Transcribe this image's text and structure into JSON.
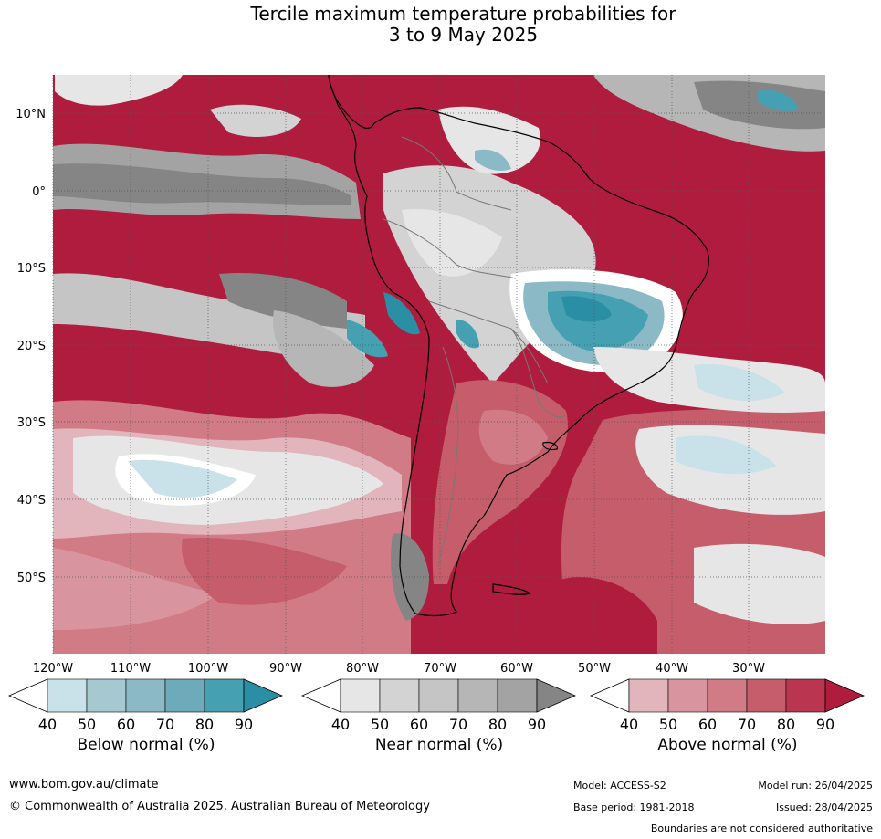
{
  "title_line1": "Tercile maximum temperature probabilities for",
  "title_line2": "3 to 9 May 2025",
  "lat_labels": [
    "10°N",
    "0°",
    "10°S",
    "20°S",
    "30°S",
    "40°S",
    "50°S"
  ],
  "lon_labels": [
    "120°W",
    "110°W",
    "100°W",
    "90°W",
    "80°W",
    "70°W",
    "60°W",
    "50°W",
    "40°W",
    "30°W"
  ],
  "colorbars": [
    {
      "label": "Below normal (%)",
      "ticks": [
        "40",
        "50",
        "60",
        "70",
        "80",
        "90"
      ],
      "colors": [
        "#ffffff",
        "#c9e1e8",
        "#a6c9d1",
        "#8bbac6",
        "#6eabba",
        "#45a0b2",
        "#2a8fa5"
      ]
    },
    {
      "label": "Near normal (%)",
      "ticks": [
        "40",
        "50",
        "60",
        "70",
        "80",
        "90"
      ],
      "colors": [
        "#ffffff",
        "#e6e6e6",
        "#d3d3d3",
        "#c5c5c5",
        "#b6b6b6",
        "#a3a3a3",
        "#858585"
      ]
    },
    {
      "label": "Above normal (%)",
      "ticks": [
        "40",
        "50",
        "60",
        "70",
        "80",
        "90"
      ],
      "colors": [
        "#ffffff",
        "#e2b5bc",
        "#d9959f",
        "#d07b86",
        "#c65d6b",
        "#ba3650",
        "#b01c3d"
      ]
    }
  ],
  "footer": {
    "website": "www.bom.gov.au/climate",
    "copyright": "© Commonwealth of Australia 2025, Australian Bureau of Meteorology",
    "model": "Model: ACCESS-S2",
    "base_period": "Base period: 1981-2018",
    "model_run": "Model run: 26/04/2025",
    "issued": "Issued: 28/04/2025",
    "disclaimer": "Boundaries are not considered authoritative"
  },
  "colors": {
    "above_strong": "#b01c3d",
    "near_strong": "#858585",
    "below_strong": "#2a8fa5"
  }
}
